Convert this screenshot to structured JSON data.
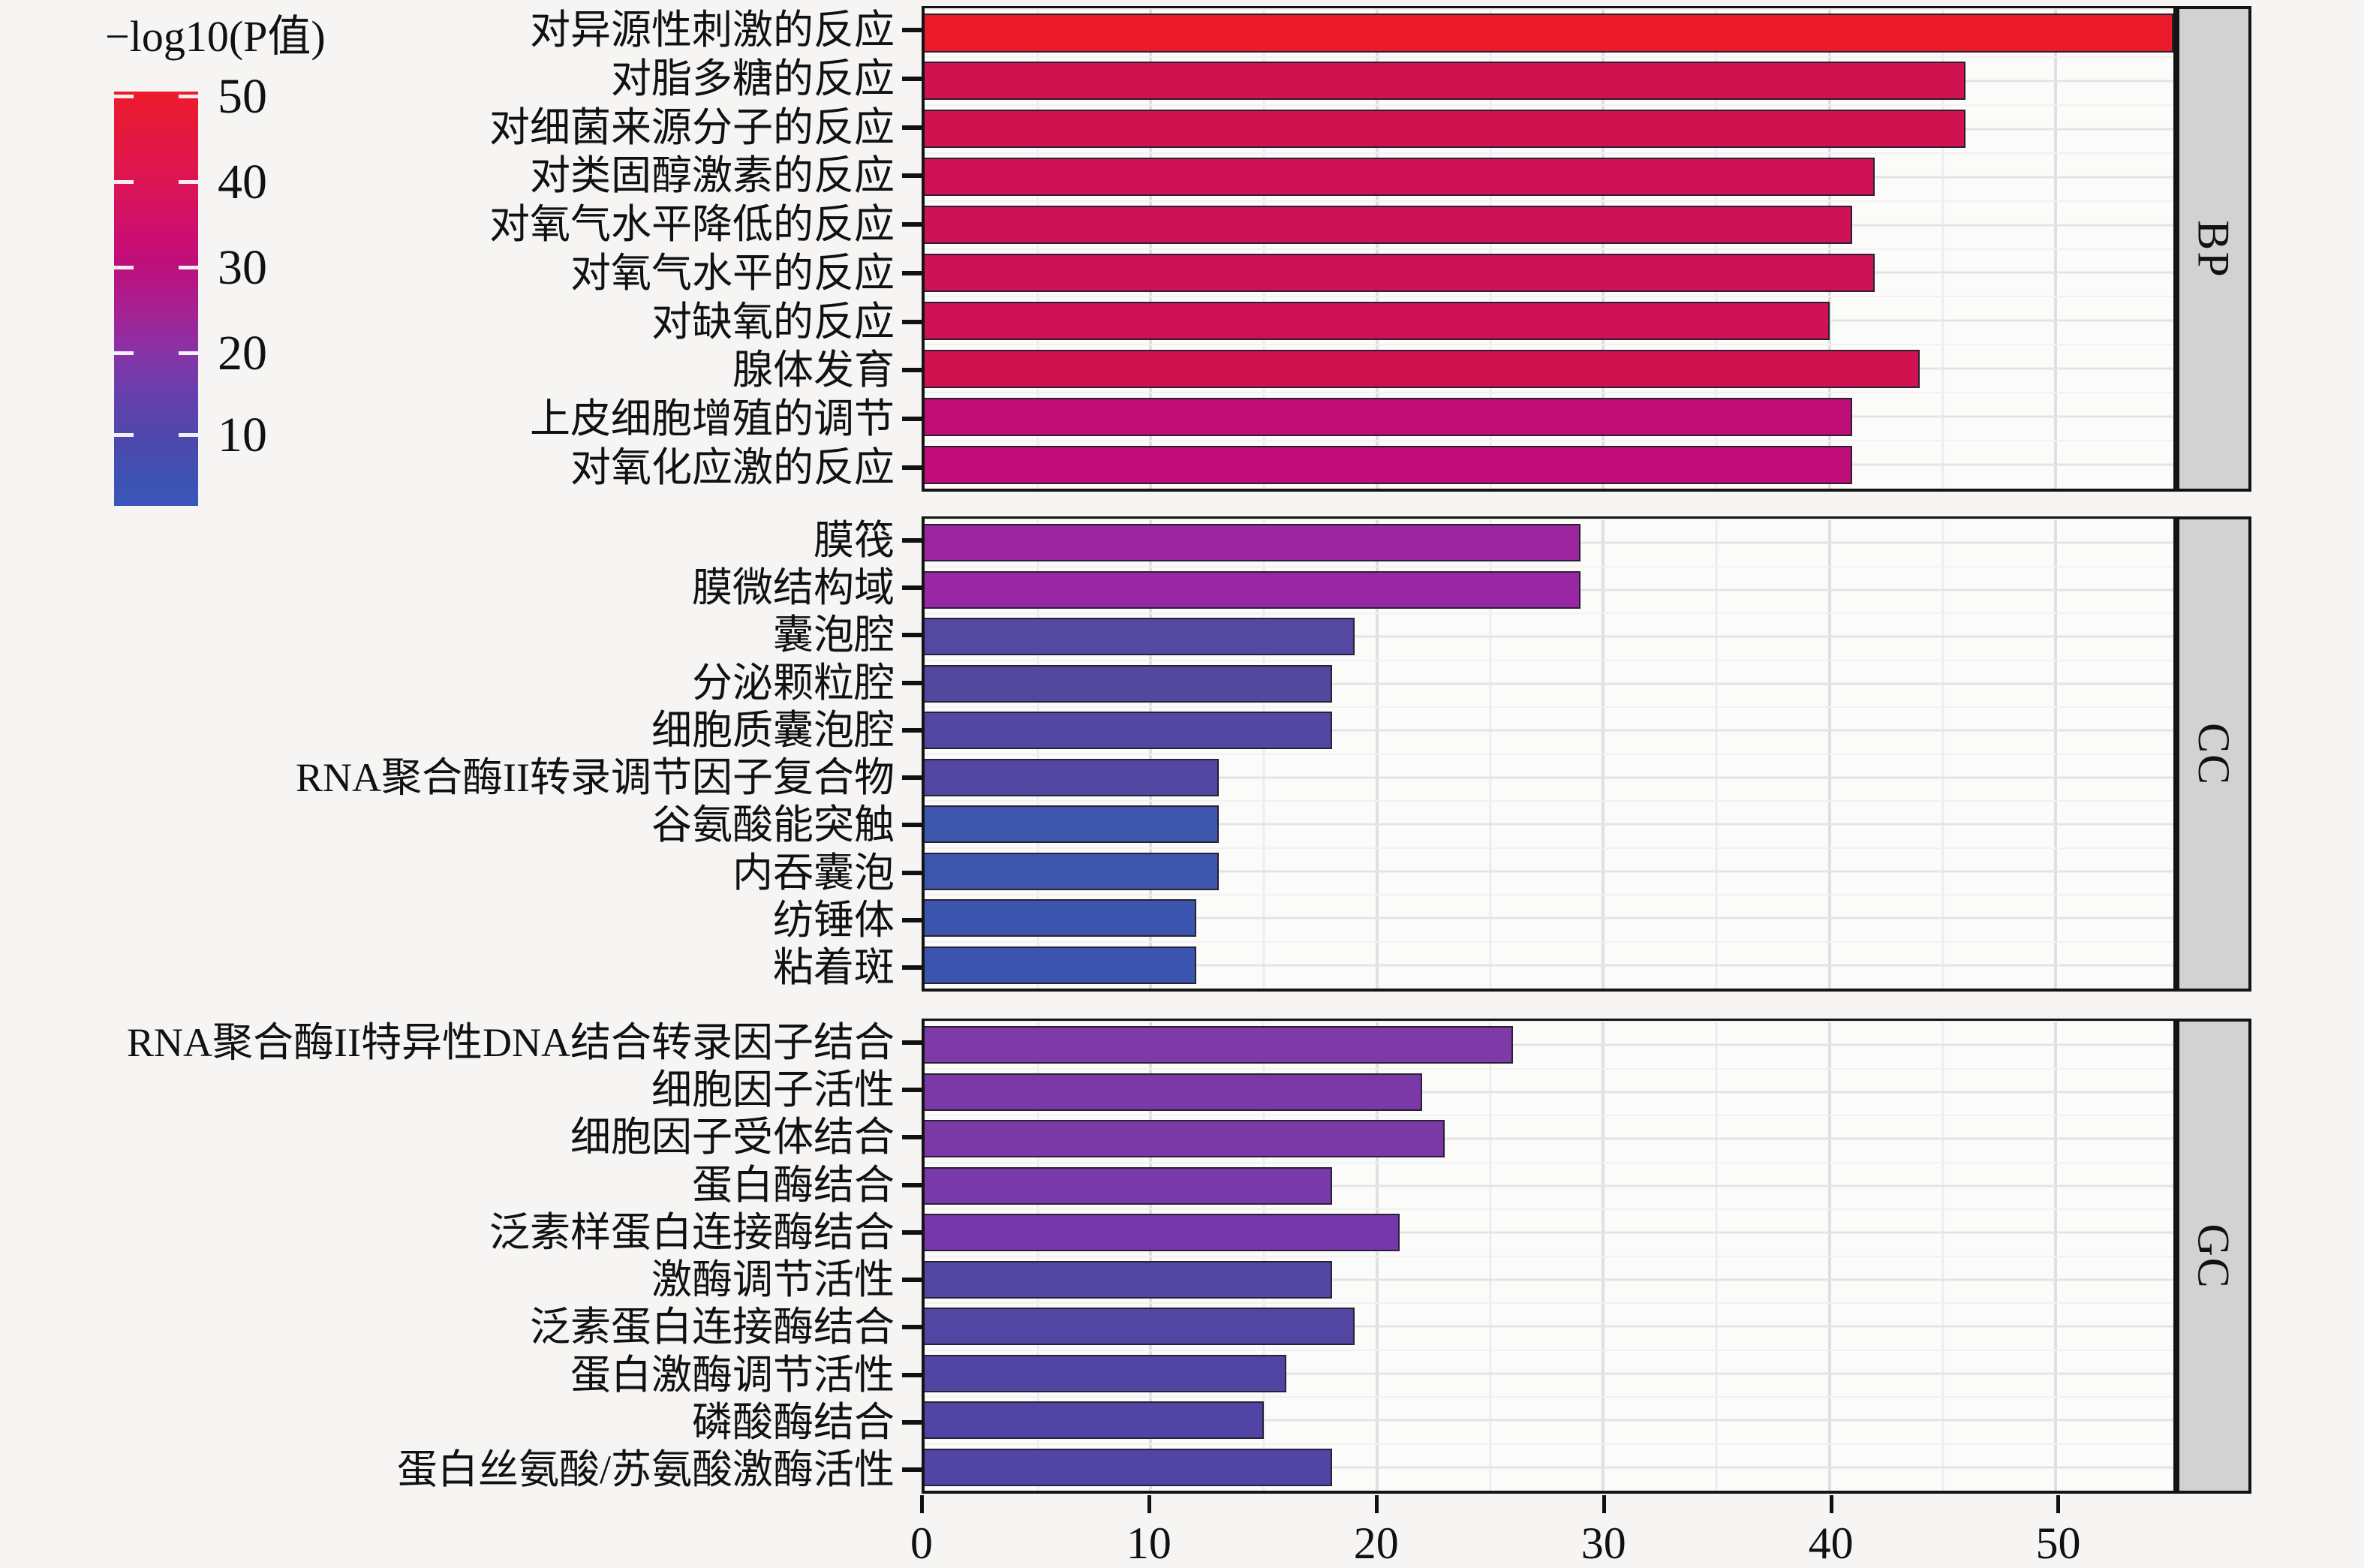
{
  "chart_data": {
    "type": "bar",
    "orientation": "horizontal",
    "title": "",
    "xlabel": "",
    "ylabel": "",
    "xlim": [
      0,
      55.2
    ],
    "x_ticks": [
      0,
      10,
      20,
      30,
      40,
      50
    ],
    "grid": "on",
    "legend_position": "top-left",
    "color_scale": {
      "title": "−log10(P值)",
      "ticks": [
        50,
        40,
        30,
        20,
        10
      ],
      "top_color": "#ee1b2c",
      "bottom_color": "#3a56b9"
    },
    "facets": [
      {
        "strip": "BP",
        "bars": [
          {
            "label": "对异源性刺激的反应",
            "value": 56,
            "color": "#ea1a2b"
          },
          {
            "label": "对脂多糖的反应",
            "value": 46,
            "color": "#d01350"
          },
          {
            "label": "对细菌来源分子的反应",
            "value": 46,
            "color": "#d01350"
          },
          {
            "label": "对类固醇激素的反应",
            "value": 42,
            "color": "#cf1254"
          },
          {
            "label": "对氧气水平降低的反应",
            "value": 41,
            "color": "#ce1256"
          },
          {
            "label": "对氧气水平的反应",
            "value": 42,
            "color": "#ce1256"
          },
          {
            "label": "对缺氧的反应",
            "value": 40,
            "color": "#cf1254"
          },
          {
            "label": "腺体发育",
            "value": 44,
            "color": "#d01350"
          },
          {
            "label": "上皮细胞增殖的调节",
            "value": 41,
            "color": "#c10d76"
          },
          {
            "label": "对氧化应激的反应",
            "value": 41,
            "color": "#c00d7a"
          }
        ]
      },
      {
        "strip": "CC",
        "bars": [
          {
            "label": "膜筏",
            "value": 29,
            "color": "#9d26a0"
          },
          {
            "label": "膜微结构域",
            "value": 29,
            "color": "#9927a5"
          },
          {
            "label": "囊泡腔",
            "value": 19,
            "color": "#5449a0"
          },
          {
            "label": "分泌颗粒腔",
            "value": 18,
            "color": "#53489f"
          },
          {
            "label": "细胞质囊泡腔",
            "value": 18,
            "color": "#5348a1"
          },
          {
            "label": "RNA聚合酶II转录调节因子复合物",
            "value": 13,
            "color": "#5246a3"
          },
          {
            "label": "谷氨酸能突触",
            "value": 13,
            "color": "#3d57ac"
          },
          {
            "label": "内吞囊泡",
            "value": 13,
            "color": "#3c56ad"
          },
          {
            "label": "纺锤体",
            "value": 12,
            "color": "#3b55ae"
          },
          {
            "label": "粘着斑",
            "value": 12,
            "color": "#3b55ae"
          }
        ]
      },
      {
        "strip": "GC",
        "bars": [
          {
            "label": "RNA聚合酶II特异性DNA结合转录因子结合",
            "value": 26,
            "color": "#7e3aa6"
          },
          {
            "label": "细胞因子活性",
            "value": 22,
            "color": "#7b39a8"
          },
          {
            "label": "细胞因子受体结合",
            "value": 23,
            "color": "#7b39a8"
          },
          {
            "label": "蛋白酶结合",
            "value": 18,
            "color": "#7839a9"
          },
          {
            "label": "泛素样蛋白连接酶结合",
            "value": 21,
            "color": "#7537a9"
          },
          {
            "label": "激酶调节活性",
            "value": 18,
            "color": "#5347a2"
          },
          {
            "label": "泛素蛋白连接酶结合",
            "value": 19,
            "color": "#5246a3"
          },
          {
            "label": "蛋白激酶调节活性",
            "value": 16,
            "color": "#5145a3"
          },
          {
            "label": "磷酸酶结合",
            "value": 15,
            "color": "#5044a4"
          },
          {
            "label": "蛋白丝氨酸/苏氨酸激酶活性",
            "value": 18,
            "color": "#5044a4"
          }
        ]
      }
    ]
  }
}
